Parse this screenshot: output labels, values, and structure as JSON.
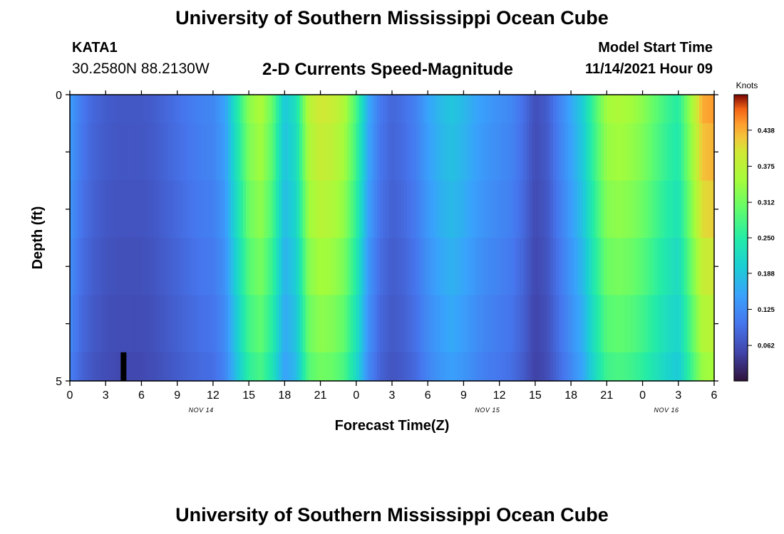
{
  "header": {
    "title": "University of Southern Mississippi Ocean Cube",
    "station_id": "KATA1",
    "coordinates": "30.2580N  88.2130W",
    "subtitle": "2-D Currents Speed-Magnitude",
    "model_start_label": "Model Start Time",
    "model_start_value": "11/14/2021 Hour 09"
  },
  "footer": {
    "title": "University of Southern Mississippi Ocean Cube"
  },
  "chart_data": {
    "type": "heatmap",
    "title": "2-D Currents Speed-Magnitude",
    "xlabel": "Forecast Time(Z)",
    "ylabel": "Depth (ft)",
    "x_range_hours": [
      0,
      54
    ],
    "x_ticks": [
      0,
      3,
      6,
      9,
      12,
      15,
      18,
      21,
      24,
      27,
      30,
      33,
      36,
      39,
      42,
      45,
      48,
      51,
      54
    ],
    "x_tick_labels": [
      "0",
      "3",
      "6",
      "9",
      "12",
      "15",
      "18",
      "21",
      "0",
      "3",
      "6",
      "9",
      "12",
      "15",
      "18",
      "21",
      "0",
      "3",
      "6"
    ],
    "date_labels": [
      {
        "hour": 11,
        "text": "NOV 14"
      },
      {
        "hour": 35,
        "text": "NOV 15"
      },
      {
        "hour": 50,
        "text": "NOV 16"
      }
    ],
    "y_range": [
      0,
      5
    ],
    "y_tick_labels": [
      {
        "value": 0,
        "text": "0"
      },
      {
        "value": 5,
        "text": "5"
      }
    ],
    "colorbar": {
      "label": "Knots",
      "range": [
        0,
        0.5
      ],
      "tick_values": [
        0.062,
        0.125,
        0.188,
        0.25,
        0.312,
        0.375,
        0.438
      ],
      "tick_labels": [
        "0.062",
        "0.125",
        "0.188",
        "0.250",
        "0.312",
        "0.375",
        "0.438"
      ]
    },
    "depth_rows": [
      {
        "top": 0.0,
        "bottom": 0.5
      },
      {
        "top": 0.5,
        "bottom": 1.5
      },
      {
        "top": 1.5,
        "bottom": 2.5
      },
      {
        "top": 2.5,
        "bottom": 3.5
      },
      {
        "top": 3.5,
        "bottom": 4.5
      },
      {
        "top": 4.5,
        "bottom": 5.0
      }
    ],
    "profile_hours": [
      0,
      1,
      2,
      3,
      4,
      5,
      6,
      7,
      8,
      9,
      10,
      11,
      12,
      13,
      14,
      15,
      16,
      17,
      18,
      19,
      20,
      21,
      22,
      23,
      24,
      25,
      26,
      27,
      28,
      29,
      30,
      31,
      32,
      33,
      34,
      35,
      36,
      37,
      38,
      39,
      40,
      41,
      42,
      43,
      44,
      45,
      46,
      47,
      48,
      49,
      50,
      51,
      52,
      53,
      54
    ],
    "profile_speeds_knots": [
      0.145,
      0.105,
      0.085,
      0.075,
      0.07,
      0.07,
      0.07,
      0.075,
      0.085,
      0.095,
      0.105,
      0.115,
      0.12,
      0.15,
      0.24,
      0.33,
      0.36,
      0.3,
      0.19,
      0.23,
      0.37,
      0.4,
      0.39,
      0.36,
      0.28,
      0.16,
      0.105,
      0.085,
      0.095,
      0.115,
      0.15,
      0.175,
      0.19,
      0.175,
      0.155,
      0.14,
      0.13,
      0.12,
      0.095,
      0.06,
      0.075,
      0.115,
      0.155,
      0.2,
      0.28,
      0.35,
      0.36,
      0.35,
      0.33,
      0.3,
      0.27,
      0.25,
      0.34,
      0.44,
      0.45
    ],
    "depth_factors": [
      1.0,
      0.97,
      0.93,
      0.88,
      0.83,
      0.78
    ],
    "grounded_cell": {
      "hour": 4.5,
      "depth_top": 4.5,
      "depth_bottom": 5.0
    }
  }
}
